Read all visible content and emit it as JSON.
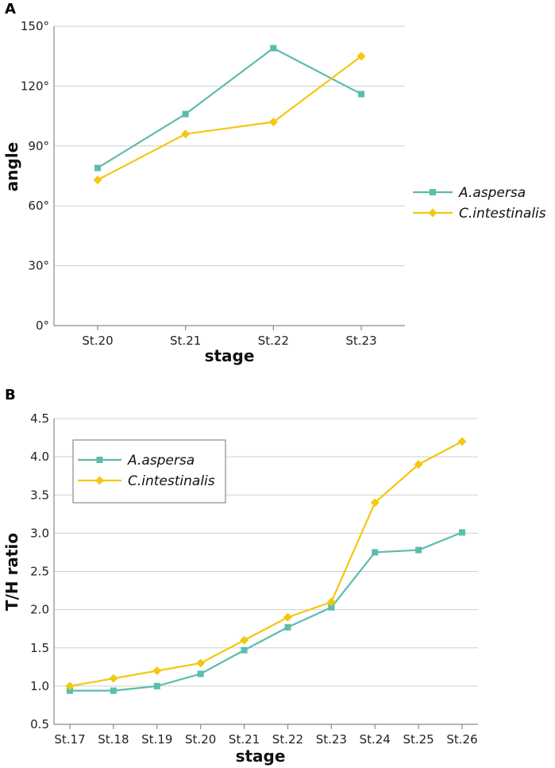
{
  "chart_data": [
    {
      "panel": "A",
      "type": "line",
      "xlabel": "stage",
      "ylabel": "angle",
      "categories": [
        "St.20",
        "St.21",
        "St.22",
        "St.23"
      ],
      "ylim": [
        0,
        150
      ],
      "yticks": [
        "0°",
        "30°",
        "60°",
        "90°",
        "120°",
        "150°"
      ],
      "ytick_values": [
        0,
        30,
        60,
        90,
        120,
        150
      ],
      "grid": true,
      "legend_position": "right",
      "series": [
        {
          "name": "A.aspersa",
          "color": "#5cbcad",
          "marker": "square",
          "values": [
            79,
            106,
            139,
            116
          ]
        },
        {
          "name": "C.intestinalis",
          "color": "#f2c811",
          "marker": "diamond",
          "values": [
            73,
            96,
            102,
            135
          ]
        }
      ]
    },
    {
      "panel": "B",
      "type": "line",
      "xlabel": "stage",
      "ylabel": "T/H ratio",
      "categories": [
        "St.17",
        "St.18",
        "St.19",
        "St.20",
        "St.21",
        "St.22",
        "St.23",
        "St.24",
        "St.25",
        "St.26"
      ],
      "ylim": [
        0.5,
        4.5
      ],
      "yticks": [
        "0.5",
        "1.0",
        "1.5",
        "2.0",
        "2.5",
        "3.0",
        "3.5",
        "4.0",
        "4.5"
      ],
      "ytick_values": [
        0.5,
        1.0,
        1.5,
        2.0,
        2.5,
        3.0,
        3.5,
        4.0,
        4.5
      ],
      "grid": true,
      "legend_position": "top-left",
      "series": [
        {
          "name": "A.aspersa",
          "color": "#5cbcad",
          "marker": "square",
          "values": [
            0.94,
            0.94,
            1.0,
            1.16,
            1.47,
            1.77,
            2.03,
            2.75,
            2.78,
            3.01
          ]
        },
        {
          "name": "C.intestinalis",
          "color": "#f2c811",
          "marker": "diamond",
          "values": [
            1.0,
            1.1,
            1.2,
            1.3,
            1.6,
            1.9,
            2.1,
            3.4,
            3.9,
            4.2
          ]
        }
      ]
    }
  ]
}
